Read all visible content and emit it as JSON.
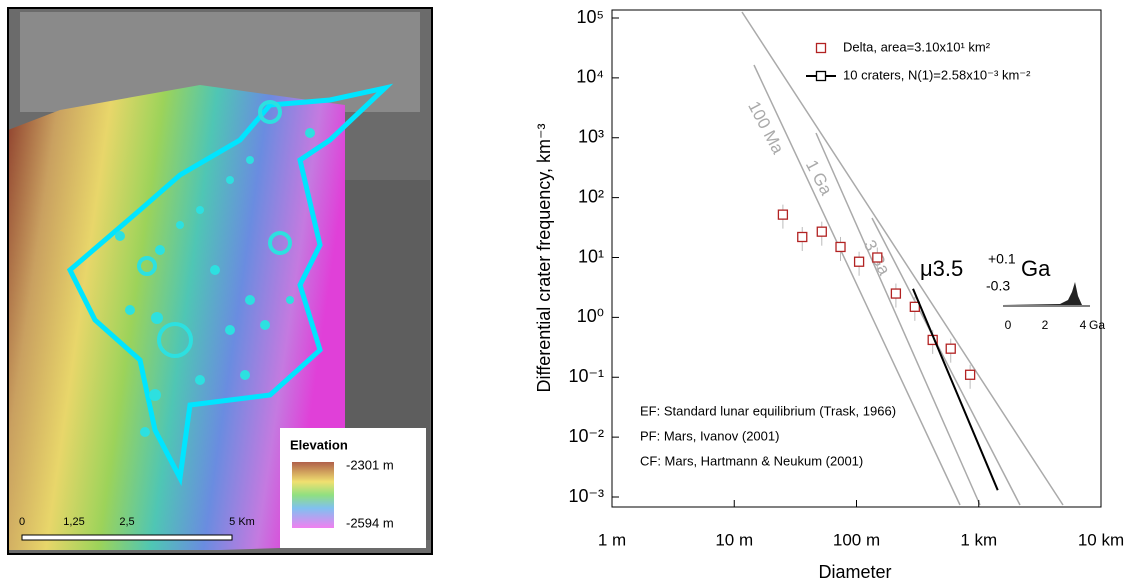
{
  "map": {
    "legend_title": "Elevation",
    "legend_max": "-2301 m",
    "legend_min": "-2594 m",
    "scale_labels": [
      "0",
      "1,25",
      "2,5",
      "5 Km"
    ]
  },
  "chart_data": {
    "type": "scatter",
    "x_label": "Diameter",
    "y_label": "Differential crater frequency, km⁻³",
    "log_x": true,
    "log_y": true,
    "xlim": [
      0.001,
      10
    ],
    "ylim": [
      0.001,
      100000
    ],
    "xticks": [
      {
        "value": 0.001,
        "label": "1 m"
      },
      {
        "value": 0.01,
        "label": "10 m"
      },
      {
        "value": 0.1,
        "label": "100 m"
      },
      {
        "value": 1,
        "label": "1 km"
      },
      {
        "value": 10,
        "label": "10 km"
      }
    ],
    "yticks": [
      {
        "value": 0.001,
        "label": "10⁻³"
      },
      {
        "value": 0.01,
        "label": "10⁻²"
      },
      {
        "value": 0.1,
        "label": "10⁻¹"
      },
      {
        "value": 1,
        "label": "10⁰"
      },
      {
        "value": 10,
        "label": "10¹"
      },
      {
        "value": 100,
        "label": "10²"
      },
      {
        "value": 1000,
        "label": "10³"
      },
      {
        "value": 10000,
        "label": "10⁴"
      },
      {
        "value": 100000,
        "label": "10⁵"
      }
    ],
    "series": [
      {
        "name": "Delta, area=3.10x10¹ km²",
        "color": "#b22222",
        "x": [
          0.025,
          0.036,
          0.052,
          0.074,
          0.105,
          0.148,
          0.21,
          0.3,
          0.42,
          0.59,
          0.85
        ],
        "values": [
          52,
          22,
          27,
          15,
          8.5,
          10,
          2.5,
          1.5,
          0.42,
          0.3,
          0.11
        ]
      },
      {
        "name": "10 craters, N(1)=2.58x10⁻³ km⁻²",
        "color": "#000000",
        "line": true,
        "x": [
          0.29,
          1.43
        ],
        "values": [
          3,
          0.0013
        ]
      }
    ],
    "isochron_labels": [
      "100 Ma",
      "1 Ga",
      "3 Ga"
    ],
    "age": {
      "prefix": "μ3.5",
      "plus": "+0.1",
      "minus": "-0.3",
      "unit": "Ga",
      "axis_labels": [
        "0",
        "2",
        "4",
        "Ga"
      ]
    },
    "notes": [
      "EF: Standard lunar equilibrium (Trask, 1966)",
      "PF: Mars, Ivanov (2001)",
      "CF: Mars, Hartmann & Neukum (2001)"
    ]
  }
}
